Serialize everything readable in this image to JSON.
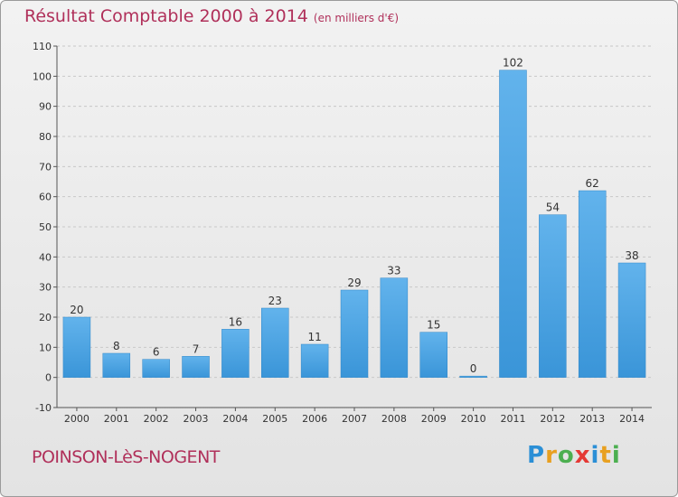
{
  "title": "Résultat Comptable 2000 à 2014",
  "subtitle": "(en milliers d'€)",
  "commune": "POINSON-LèS-NOGENT",
  "logo": {
    "letters": [
      "P",
      "r",
      "o",
      "x",
      "i",
      "t",
      "i"
    ],
    "colors": [
      "#2b8fd6",
      "#e8a020",
      "#4caf50",
      "#e53935",
      "#2b8fd6",
      "#e8a020",
      "#4caf50"
    ]
  },
  "colors": {
    "bar": "#3a95d8",
    "bar_light": "#62b3ec",
    "title": "#b0305a"
  },
  "chart_data": {
    "type": "bar",
    "categories": [
      "2000",
      "2001",
      "2002",
      "2003",
      "2004",
      "2005",
      "2006",
      "2007",
      "2008",
      "2009",
      "2010",
      "2011",
      "2012",
      "2013",
      "2014"
    ],
    "values": [
      20,
      8,
      6,
      7,
      16,
      23,
      11,
      29,
      33,
      15,
      0,
      102,
      54,
      62,
      38
    ],
    "ylim": [
      -10,
      110
    ],
    "yticks": [
      -10,
      0,
      10,
      20,
      30,
      40,
      50,
      60,
      70,
      80,
      90,
      100,
      110
    ],
    "grid": true
  }
}
